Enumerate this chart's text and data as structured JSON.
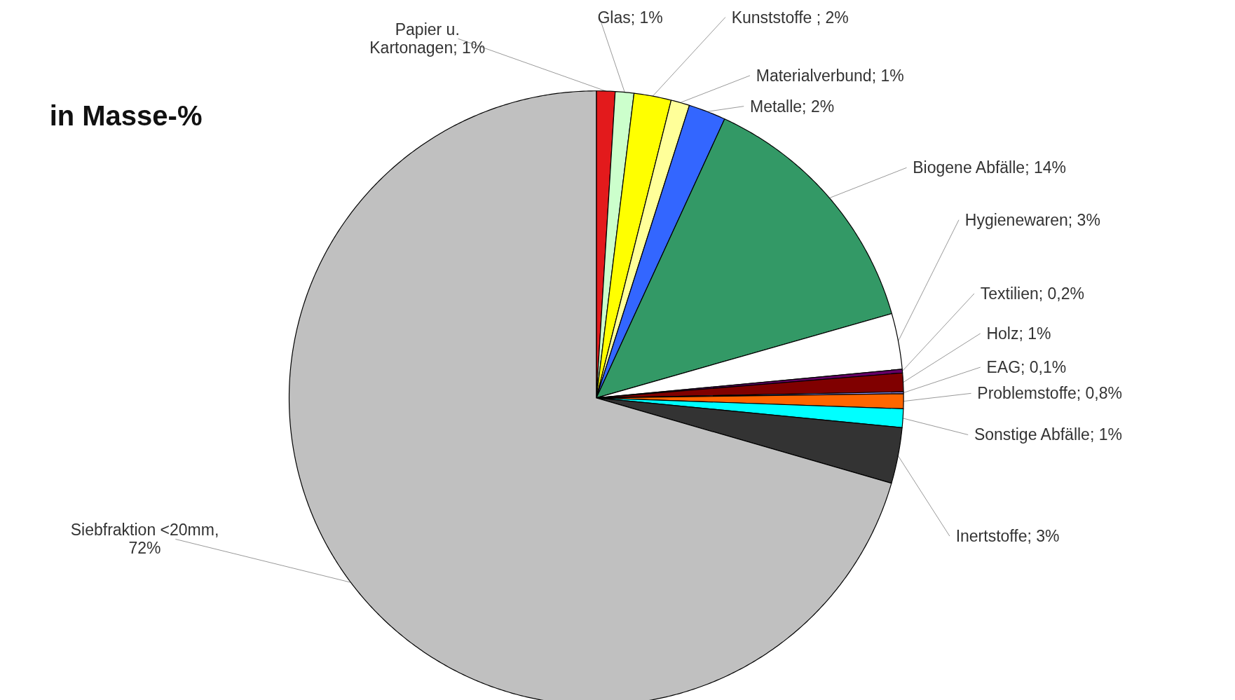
{
  "chart_data": {
    "type": "pie",
    "title": "in Masse-%",
    "categories": [
      "Papier u.\nKartonagen",
      "Glas",
      "Kunststoffe ",
      "Materialverbund",
      "Metalle",
      "Biogene Abfälle",
      "Hygienewaren",
      "Textilien",
      "Holz",
      "EAG",
      "Problemstoffe",
      "Sonstige Abfälle",
      "Inertstoffe",
      "Siebfraktion <20mm"
    ],
    "values": [
      1,
      1,
      2,
      1,
      2,
      14,
      3,
      0.2,
      1,
      0.1,
      0.8,
      1,
      3,
      72
    ],
    "value_labels": [
      "; 1%",
      "; 1%",
      "; 2%",
      "; 1%",
      "; 2%",
      "; 14%",
      "; 3%",
      "; 0,2%",
      "; 1%",
      "; 0,1%",
      "; 0,8%",
      "; 1%",
      "; 3%",
      ",\n72%"
    ],
    "colors": [
      "#e31a1c",
      "#ccffcc",
      "#ffff00",
      "#ffff99",
      "#3366ff",
      "#339966",
      "#ffffff",
      "#660066",
      "#800000",
      "#9999ff",
      "#ff6600",
      "#00ffff",
      "#333333",
      "#c0c0c0"
    ]
  }
}
